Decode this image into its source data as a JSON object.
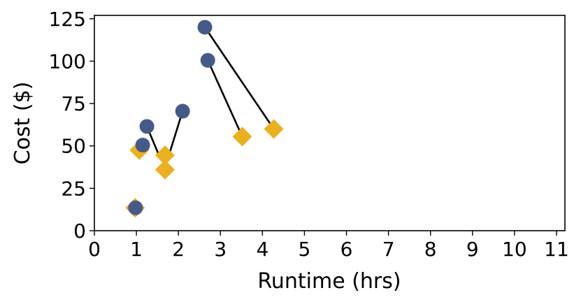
{
  "chart_data": {
    "type": "scatter",
    "title": "",
    "xlabel": "Runtime (hrs)",
    "ylabel": "Cost ($)",
    "xlim": [
      0,
      11.2
    ],
    "ylim": [
      0,
      127
    ],
    "x_ticks": [
      0,
      1,
      2,
      3,
      4,
      5,
      6,
      7,
      8,
      9,
      10,
      11
    ],
    "y_ticks": [
      0,
      25,
      50,
      75,
      100,
      125
    ],
    "grid": false,
    "colors": {
      "circle": "#465A8A",
      "diamond": "#EBB01E",
      "connector": "#000000"
    },
    "series": [
      {
        "marker": "circle",
        "points": [
          {
            "x": 0.98,
            "y": 13.5
          },
          {
            "x": 1.15,
            "y": 50.5
          },
          {
            "x": 1.25,
            "y": 61.5
          },
          {
            "x": 2.1,
            "y": 70.5
          },
          {
            "x": 2.63,
            "y": 120
          },
          {
            "x": 2.7,
            "y": 100.5
          }
        ]
      },
      {
        "marker": "diamond",
        "points": [
          {
            "x": 0.97,
            "y": 13.5
          },
          {
            "x": 1.07,
            "y": 47.5
          },
          {
            "x": 1.68,
            "y": 36
          },
          {
            "x": 1.68,
            "y": 44.5
          },
          {
            "x": 3.52,
            "y": 55.5
          },
          {
            "x": 4.27,
            "y": 60
          }
        ]
      }
    ],
    "connections": [
      {
        "from": [
          1.25,
          61.5
        ],
        "to": [
          1.52,
          45.5
        ]
      },
      {
        "from": [
          2.1,
          70.5
        ],
        "to": [
          1.78,
          45
        ]
      },
      {
        "from": [
          2.7,
          100.5
        ],
        "to": [
          3.52,
          55.5
        ]
      },
      {
        "from": [
          2.63,
          120
        ],
        "to": [
          4.27,
          60
        ]
      }
    ]
  }
}
